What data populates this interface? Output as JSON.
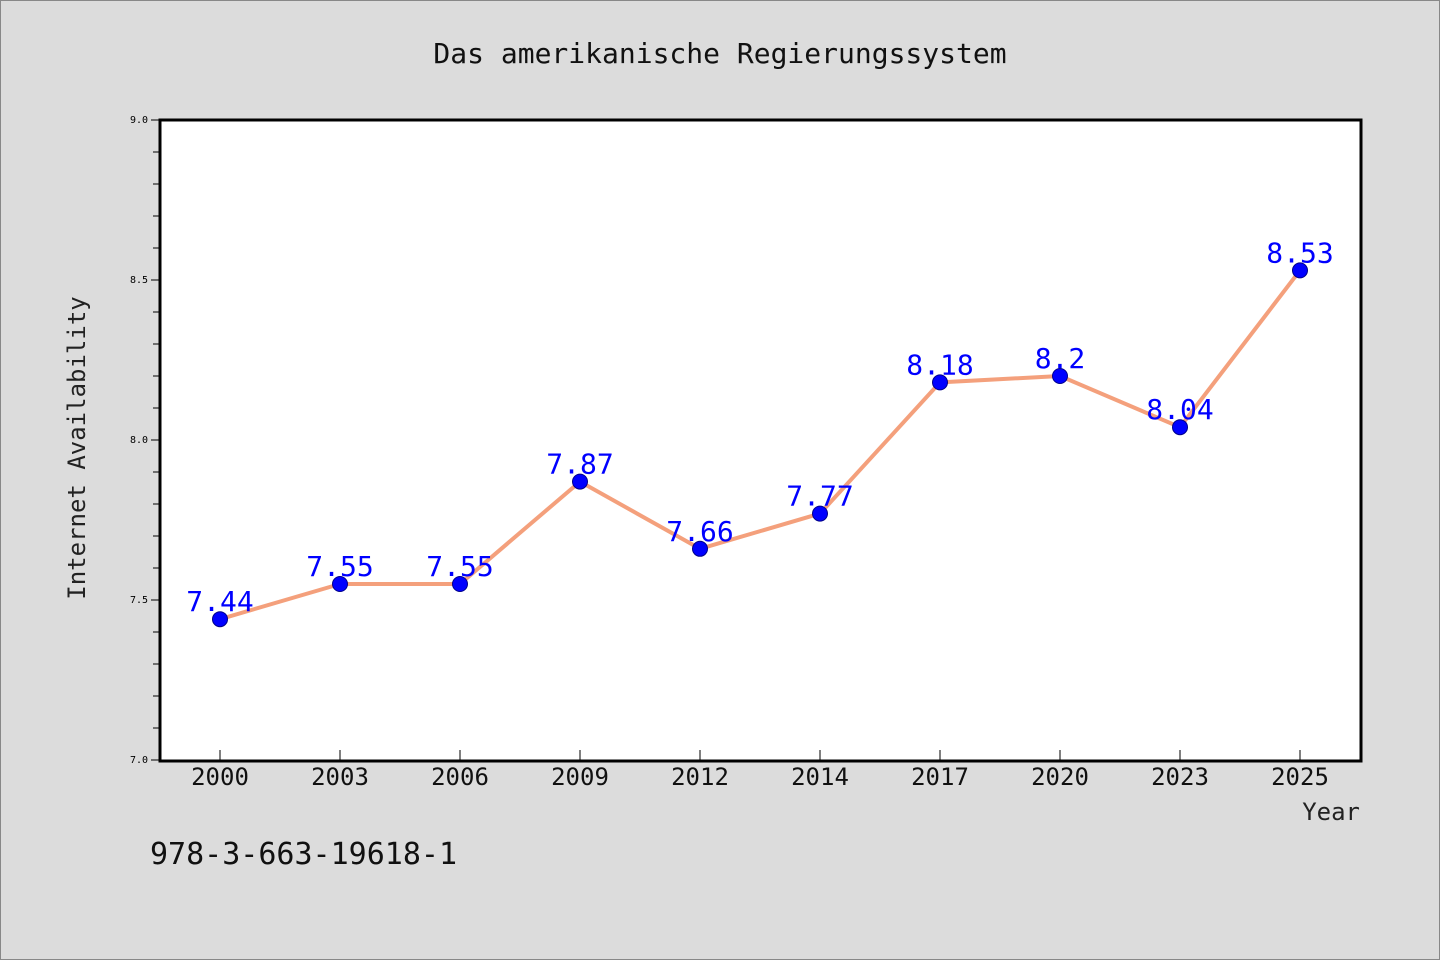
{
  "chart_data": {
    "type": "line",
    "title": "Das amerikanische Regierungssystem",
    "xlabel": "Year",
    "ylabel": "Internet Availability",
    "categories": [
      "2000",
      "2003",
      "2006",
      "2009",
      "2012",
      "2014",
      "2017",
      "2020",
      "2023",
      "2025"
    ],
    "series": [
      {
        "values": [
          7.44,
          7.55,
          7.55,
          7.87,
          7.66,
          7.77,
          8.18,
          8.2,
          8.04,
          8.53
        ]
      }
    ],
    "data_labels": [
      "7.44",
      "7.55",
      "7.55",
      "7.87",
      "7.66",
      "7.77",
      "8.18",
      "8.2",
      "8.04",
      "8.53"
    ],
    "ylim": [
      7.0,
      9.0
    ],
    "yticks": [
      7.0,
      7.5,
      8.0,
      8.5,
      9.0
    ],
    "ytick_labels": [
      "7.0",
      "7.5",
      "8.0",
      "8.5",
      "9.0"
    ],
    "grid": false,
    "colors": {
      "line": "#f4a07c",
      "marker": "#0000ff",
      "label": "#0000ff",
      "background": "#dcdcdc",
      "plot_background": "#ffffff"
    }
  },
  "footer_text": "978-3-663-19618-1"
}
